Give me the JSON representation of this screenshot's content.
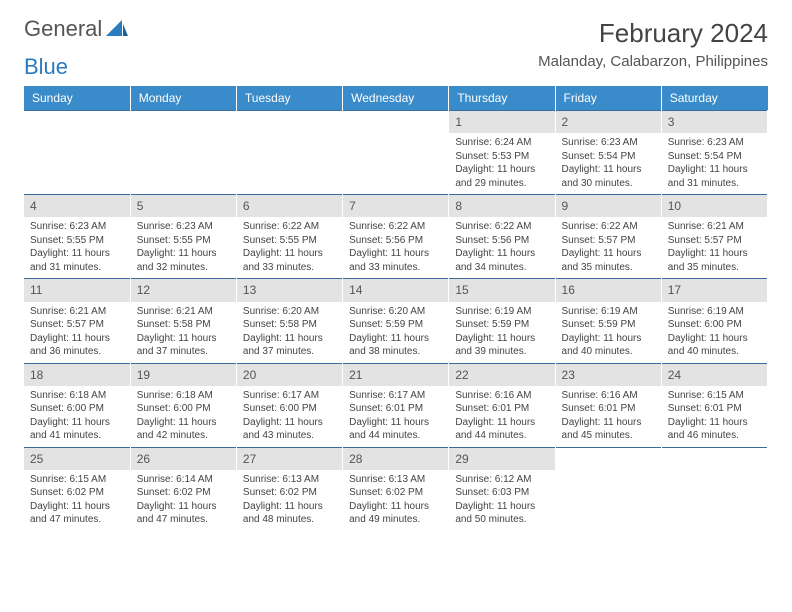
{
  "brand": {
    "word1": "General",
    "word2": "Blue"
  },
  "title": "February 2024",
  "location": "Malanday, Calabarzon, Philippines",
  "colors": {
    "header_bg": "#3a8bc9",
    "header_fg": "#ffffff",
    "daynum_bg": "#e3e3e3",
    "rule": "#3a6a9a",
    "brand_blue": "#2a7bbf"
  },
  "day_headers": [
    "Sunday",
    "Monday",
    "Tuesday",
    "Wednesday",
    "Thursday",
    "Friday",
    "Saturday"
  ],
  "weeks": [
    [
      {
        "n": "",
        "sr": "",
        "ss": "",
        "dl": ""
      },
      {
        "n": "",
        "sr": "",
        "ss": "",
        "dl": ""
      },
      {
        "n": "",
        "sr": "",
        "ss": "",
        "dl": ""
      },
      {
        "n": "",
        "sr": "",
        "ss": "",
        "dl": ""
      },
      {
        "n": "1",
        "sr": "Sunrise: 6:24 AM",
        "ss": "Sunset: 5:53 PM",
        "dl": "Daylight: 11 hours and 29 minutes."
      },
      {
        "n": "2",
        "sr": "Sunrise: 6:23 AM",
        "ss": "Sunset: 5:54 PM",
        "dl": "Daylight: 11 hours and 30 minutes."
      },
      {
        "n": "3",
        "sr": "Sunrise: 6:23 AM",
        "ss": "Sunset: 5:54 PM",
        "dl": "Daylight: 11 hours and 31 minutes."
      }
    ],
    [
      {
        "n": "4",
        "sr": "Sunrise: 6:23 AM",
        "ss": "Sunset: 5:55 PM",
        "dl": "Daylight: 11 hours and 31 minutes."
      },
      {
        "n": "5",
        "sr": "Sunrise: 6:23 AM",
        "ss": "Sunset: 5:55 PM",
        "dl": "Daylight: 11 hours and 32 minutes."
      },
      {
        "n": "6",
        "sr": "Sunrise: 6:22 AM",
        "ss": "Sunset: 5:55 PM",
        "dl": "Daylight: 11 hours and 33 minutes."
      },
      {
        "n": "7",
        "sr": "Sunrise: 6:22 AM",
        "ss": "Sunset: 5:56 PM",
        "dl": "Daylight: 11 hours and 33 minutes."
      },
      {
        "n": "8",
        "sr": "Sunrise: 6:22 AM",
        "ss": "Sunset: 5:56 PM",
        "dl": "Daylight: 11 hours and 34 minutes."
      },
      {
        "n": "9",
        "sr": "Sunrise: 6:22 AM",
        "ss": "Sunset: 5:57 PM",
        "dl": "Daylight: 11 hours and 35 minutes."
      },
      {
        "n": "10",
        "sr": "Sunrise: 6:21 AM",
        "ss": "Sunset: 5:57 PM",
        "dl": "Daylight: 11 hours and 35 minutes."
      }
    ],
    [
      {
        "n": "11",
        "sr": "Sunrise: 6:21 AM",
        "ss": "Sunset: 5:57 PM",
        "dl": "Daylight: 11 hours and 36 minutes."
      },
      {
        "n": "12",
        "sr": "Sunrise: 6:21 AM",
        "ss": "Sunset: 5:58 PM",
        "dl": "Daylight: 11 hours and 37 minutes."
      },
      {
        "n": "13",
        "sr": "Sunrise: 6:20 AM",
        "ss": "Sunset: 5:58 PM",
        "dl": "Daylight: 11 hours and 37 minutes."
      },
      {
        "n": "14",
        "sr": "Sunrise: 6:20 AM",
        "ss": "Sunset: 5:59 PM",
        "dl": "Daylight: 11 hours and 38 minutes."
      },
      {
        "n": "15",
        "sr": "Sunrise: 6:19 AM",
        "ss": "Sunset: 5:59 PM",
        "dl": "Daylight: 11 hours and 39 minutes."
      },
      {
        "n": "16",
        "sr": "Sunrise: 6:19 AM",
        "ss": "Sunset: 5:59 PM",
        "dl": "Daylight: 11 hours and 40 minutes."
      },
      {
        "n": "17",
        "sr": "Sunrise: 6:19 AM",
        "ss": "Sunset: 6:00 PM",
        "dl": "Daylight: 11 hours and 40 minutes."
      }
    ],
    [
      {
        "n": "18",
        "sr": "Sunrise: 6:18 AM",
        "ss": "Sunset: 6:00 PM",
        "dl": "Daylight: 11 hours and 41 minutes."
      },
      {
        "n": "19",
        "sr": "Sunrise: 6:18 AM",
        "ss": "Sunset: 6:00 PM",
        "dl": "Daylight: 11 hours and 42 minutes."
      },
      {
        "n": "20",
        "sr": "Sunrise: 6:17 AM",
        "ss": "Sunset: 6:00 PM",
        "dl": "Daylight: 11 hours and 43 minutes."
      },
      {
        "n": "21",
        "sr": "Sunrise: 6:17 AM",
        "ss": "Sunset: 6:01 PM",
        "dl": "Daylight: 11 hours and 44 minutes."
      },
      {
        "n": "22",
        "sr": "Sunrise: 6:16 AM",
        "ss": "Sunset: 6:01 PM",
        "dl": "Daylight: 11 hours and 44 minutes."
      },
      {
        "n": "23",
        "sr": "Sunrise: 6:16 AM",
        "ss": "Sunset: 6:01 PM",
        "dl": "Daylight: 11 hours and 45 minutes."
      },
      {
        "n": "24",
        "sr": "Sunrise: 6:15 AM",
        "ss": "Sunset: 6:01 PM",
        "dl": "Daylight: 11 hours and 46 minutes."
      }
    ],
    [
      {
        "n": "25",
        "sr": "Sunrise: 6:15 AM",
        "ss": "Sunset: 6:02 PM",
        "dl": "Daylight: 11 hours and 47 minutes."
      },
      {
        "n": "26",
        "sr": "Sunrise: 6:14 AM",
        "ss": "Sunset: 6:02 PM",
        "dl": "Daylight: 11 hours and 47 minutes."
      },
      {
        "n": "27",
        "sr": "Sunrise: 6:13 AM",
        "ss": "Sunset: 6:02 PM",
        "dl": "Daylight: 11 hours and 48 minutes."
      },
      {
        "n": "28",
        "sr": "Sunrise: 6:13 AM",
        "ss": "Sunset: 6:02 PM",
        "dl": "Daylight: 11 hours and 49 minutes."
      },
      {
        "n": "29",
        "sr": "Sunrise: 6:12 AM",
        "ss": "Sunset: 6:03 PM",
        "dl": "Daylight: 11 hours and 50 minutes."
      },
      {
        "n": "",
        "sr": "",
        "ss": "",
        "dl": ""
      },
      {
        "n": "",
        "sr": "",
        "ss": "",
        "dl": ""
      }
    ]
  ]
}
